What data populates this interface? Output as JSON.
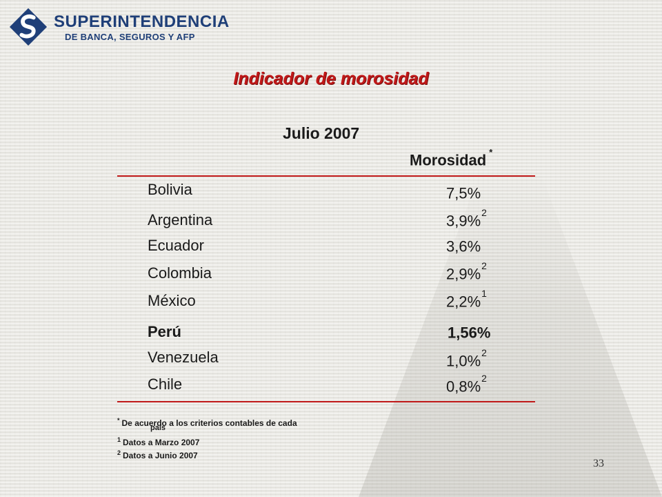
{
  "logo": {
    "name": "SUPERINTENDENCIA",
    "subname": "DE BANCA, SEGUROS Y AFP",
    "icon": "sbs-logo-icon",
    "colors": {
      "primary": "#1f3f78",
      "accent": "#ffffff"
    }
  },
  "title": "Indicador de morosidad",
  "subtitle": "Julio 2007",
  "table": {
    "column_header": "Morosidad",
    "column_header_mark": "*",
    "rows": [
      {
        "country": "Bolivia",
        "value": "7,5%",
        "note": ""
      },
      {
        "country": "Argentina",
        "value": "3,9%",
        "note": "2"
      },
      {
        "country": "Ecuador",
        "value": "3,6%",
        "note": ""
      },
      {
        "country": "Colombia",
        "value": "2,9%",
        "note": "2"
      },
      {
        "country": "México",
        "value": "2,2%",
        "note": "1"
      },
      {
        "country": "Perú",
        "value": "1,56%",
        "note": ""
      },
      {
        "country": "Venezuela",
        "value": "1,0%",
        "note": "2"
      },
      {
        "country": "Chile",
        "value": "0,8%",
        "note": "2"
      }
    ]
  },
  "footnotes": {
    "criteria_mark": "*",
    "criteria_text": "De acuerdo a los criterios contables de cada",
    "criteria_text_2": "país",
    "note1_mark": "1",
    "note1_text": "Datos a Marzo 2007",
    "note2_mark": "2",
    "note2_text": "Datos a Junio 2007"
  },
  "page_number": "33",
  "colors": {
    "title": "#c01818",
    "rule": "#c01818",
    "text": "#1a1a1a"
  }
}
